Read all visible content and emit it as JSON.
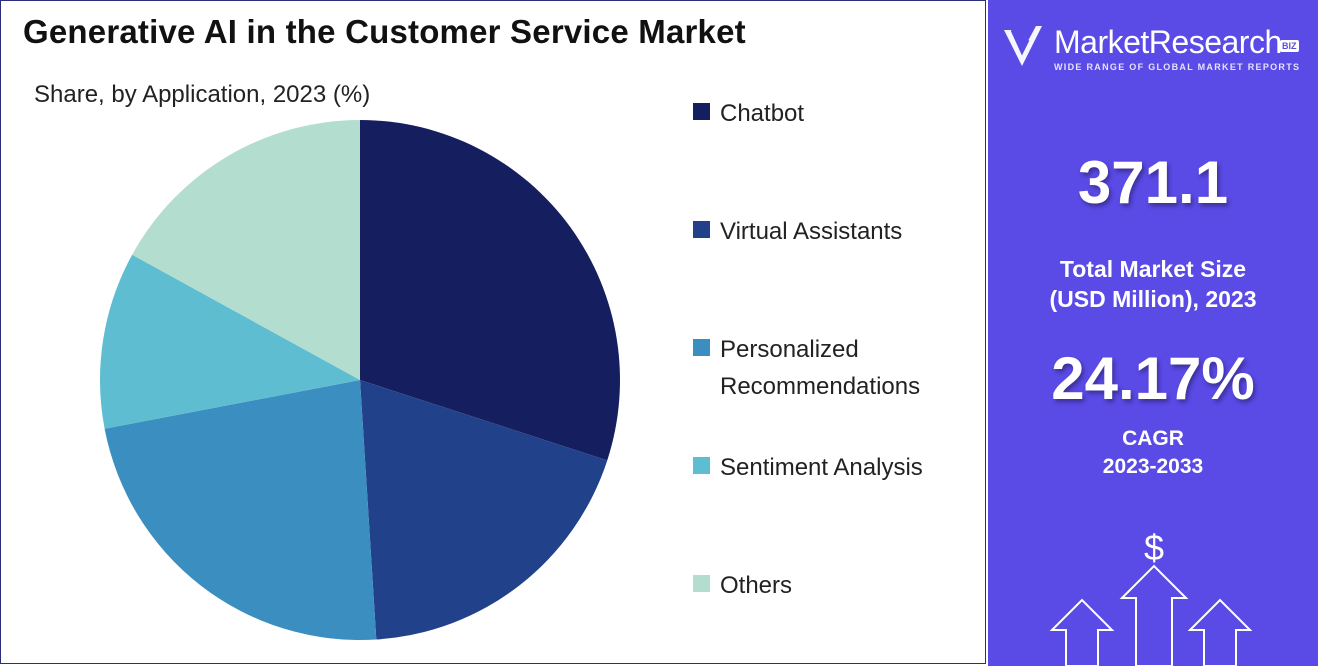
{
  "chart_data": {
    "type": "pie",
    "title": "Generative AI in the Customer Service Market",
    "subtitle": "Share, by Application, 2023 (%)",
    "categories": [
      "Chatbot",
      "Virtual Assistants",
      "Personalized Recommendations",
      "Sentiment Analysis",
      "Others"
    ],
    "values": [
      30,
      19,
      23,
      11,
      17
    ],
    "colors": [
      "#151f5f",
      "#22418b",
      "#3b8ec0",
      "#5fbdd2",
      "#b3ddcf"
    ],
    "legend_position": "right"
  },
  "panel": {
    "brand_name": "MarketResearch",
    "brand_badge": "BIZ",
    "brand_tagline": "WIDE RANGE OF GLOBAL MARKET REPORTS",
    "market_size_value": "371.1",
    "market_size_label_line1": "Total Market Size",
    "market_size_label_line2": "(USD Million), 2023",
    "cagr_value": "24.17%",
    "cagr_label_line1": "CAGR",
    "cagr_label_line2": "2023-2033",
    "dollar_symbol": "$",
    "panel_color": "#5a4ae6"
  }
}
